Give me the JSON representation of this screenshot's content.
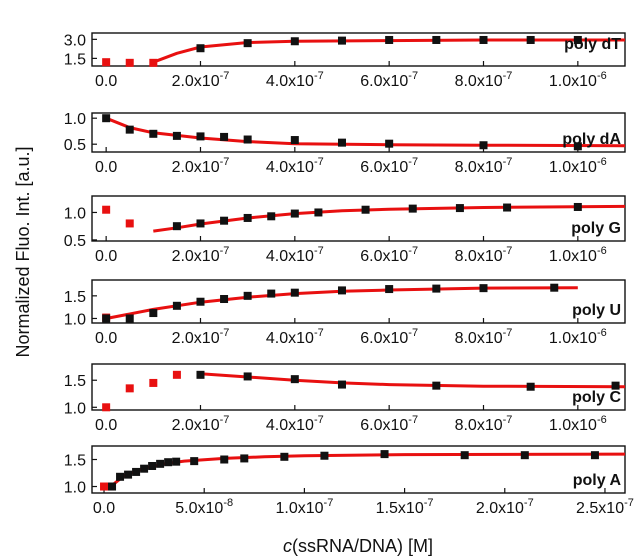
{
  "chart_data": {
    "type": "scatter",
    "ylabel": "Normalized Fluo. Int. [a.u.]",
    "xlabel": "c(ssRNA/DNA) [M]",
    "xlabel_italic": "c",
    "xlabel_rest": "(ssRNA/DNA) [M]",
    "colors": {
      "data": "#111111",
      "excluded": "#e81010",
      "fit": "#e81010",
      "axis": "#111111"
    },
    "panels": [
      {
        "label": "poly dT",
        "xlim": [
          -3e-08,
          1.1e-06
        ],
        "ylim": [
          0.9,
          3.5
        ],
        "yticks": [
          {
            "v": 3.0,
            "t": "3.0"
          },
          {
            "v": 1.5,
            "t": "1.5"
          }
        ],
        "xticks": [
          {
            "v": 0,
            "m": "0.0",
            "e": ""
          },
          {
            "v": 2e-07,
            "m": "2.0x10",
            "e": "-7"
          },
          {
            "v": 4e-07,
            "m": "4.0x10",
            "e": "-7"
          },
          {
            "v": 6e-07,
            "m": "6.0x10",
            "e": "-7"
          },
          {
            "v": 8e-07,
            "m": "8.0x10",
            "e": "-7"
          },
          {
            "v": 1e-06,
            "m": "1.0x10",
            "e": "-6"
          }
        ],
        "excluded": [
          [
            0,
            1.2
          ],
          [
            5e-08,
            1.15
          ],
          [
            1e-07,
            1.15
          ]
        ],
        "points": [
          [
            2e-07,
            2.3
          ],
          [
            3e-07,
            2.7
          ],
          [
            4e-07,
            2.85
          ],
          [
            5e-07,
            2.9
          ],
          [
            6e-07,
            2.95
          ],
          [
            7e-07,
            2.95
          ],
          [
            8e-07,
            2.95
          ],
          [
            9e-07,
            2.95
          ],
          [
            1e-06,
            2.95
          ]
        ],
        "fit": [
          [
            1e-07,
            1.2
          ],
          [
            1.5e-07,
            1.9
          ],
          [
            2e-07,
            2.4
          ],
          [
            3e-07,
            2.75
          ],
          [
            4e-07,
            2.85
          ],
          [
            6e-07,
            2.9
          ],
          [
            8e-07,
            2.95
          ],
          [
            1.1e-06,
            2.95
          ]
        ]
      },
      {
        "label": "poly dA",
        "xlim": [
          -3e-08,
          1.1e-06
        ],
        "ylim": [
          0.35,
          1.1
        ],
        "yticks": [
          {
            "v": 1.0,
            "t": "1.0"
          },
          {
            "v": 0.5,
            "t": "0.5"
          }
        ],
        "xticks": [
          {
            "v": 0,
            "m": "0.0",
            "e": ""
          },
          {
            "v": 2e-07,
            "m": "2.0x10",
            "e": "-7"
          },
          {
            "v": 4e-07,
            "m": "4.0x10",
            "e": "-7"
          },
          {
            "v": 6e-07,
            "m": "6.0x10",
            "e": "-7"
          },
          {
            "v": 8e-07,
            "m": "8.0x10",
            "e": "-7"
          },
          {
            "v": 1e-06,
            "m": "1.0x10",
            "e": "-6"
          }
        ],
        "excluded": [],
        "points": [
          [
            0,
            1.0
          ],
          [
            5e-08,
            0.78
          ],
          [
            1e-07,
            0.7
          ],
          [
            1.5e-07,
            0.66
          ],
          [
            2e-07,
            0.65
          ],
          [
            2.5e-07,
            0.64
          ],
          [
            3e-07,
            0.59
          ],
          [
            4e-07,
            0.58
          ],
          [
            5e-07,
            0.53
          ],
          [
            6e-07,
            0.51
          ],
          [
            8e-07,
            0.48
          ],
          [
            1e-06,
            0.46
          ]
        ],
        "fit": [
          [
            0,
            1.0
          ],
          [
            5e-08,
            0.82
          ],
          [
            1e-07,
            0.72
          ],
          [
            2e-07,
            0.62
          ],
          [
            3e-07,
            0.55
          ],
          [
            4e-07,
            0.51
          ],
          [
            6e-07,
            0.49
          ],
          [
            8e-07,
            0.48
          ],
          [
            1.1e-06,
            0.47
          ]
        ]
      },
      {
        "label": "poly G",
        "xlim": [
          -3e-08,
          1.1e-06
        ],
        "ylim": [
          0.48,
          1.3
        ],
        "yticks": [
          {
            "v": 1.0,
            "t": "1.0"
          },
          {
            "v": 0.5,
            "t": "0.5"
          }
        ],
        "xticks": [
          {
            "v": 0,
            "m": "0.0",
            "e": ""
          },
          {
            "v": 2e-07,
            "m": "2.0x10",
            "e": "-7"
          },
          {
            "v": 4e-07,
            "m": "4.0x10",
            "e": "-7"
          },
          {
            "v": 6e-07,
            "m": "6.0x10",
            "e": "-7"
          },
          {
            "v": 8e-07,
            "m": "8.0x10",
            "e": "-7"
          },
          {
            "v": 1e-06,
            "m": "1.0x10",
            "e": "-6"
          }
        ],
        "excluded": [
          [
            0,
            1.05
          ],
          [
            5e-08,
            0.8
          ]
        ],
        "points": [
          [
            1.5e-07,
            0.75
          ],
          [
            2e-07,
            0.8
          ],
          [
            2.5e-07,
            0.85
          ],
          [
            3e-07,
            0.9
          ],
          [
            3.5e-07,
            0.93
          ],
          [
            4e-07,
            0.98
          ],
          [
            4.5e-07,
            1.0
          ],
          [
            5.5e-07,
            1.05
          ],
          [
            6.5e-07,
            1.07
          ],
          [
            7.5e-07,
            1.08
          ],
          [
            8.5e-07,
            1.09
          ],
          [
            1e-06,
            1.1
          ]
        ],
        "fit": [
          [
            1e-07,
            0.66
          ],
          [
            1.5e-07,
            0.72
          ],
          [
            2e-07,
            0.79
          ],
          [
            3e-07,
            0.9
          ],
          [
            4e-07,
            0.98
          ],
          [
            5e-07,
            1.03
          ],
          [
            6e-07,
            1.06
          ],
          [
            8e-07,
            1.09
          ],
          [
            1.1e-06,
            1.11
          ]
        ]
      },
      {
        "label": "poly U",
        "xlim": [
          -3e-08,
          1.1e-06
        ],
        "ylim": [
          0.9,
          1.85
        ],
        "yticks": [
          {
            "v": 1.5,
            "t": "1.5"
          },
          {
            "v": 1.0,
            "t": "1.0"
          }
        ],
        "xticks": [
          {
            "v": 0,
            "m": "0.0",
            "e": ""
          },
          {
            "v": 2e-07,
            "m": "2.0x10",
            "e": "-7"
          },
          {
            "v": 4e-07,
            "m": "4.0x10",
            "e": "-7"
          },
          {
            "v": 6e-07,
            "m": "6.0x10",
            "e": "-7"
          },
          {
            "v": 8e-07,
            "m": "8.0x10",
            "e": "-7"
          },
          {
            "v": 1e-06,
            "m": "1.0x10",
            "e": "-6"
          }
        ],
        "excluded": [
          [
            0,
            1.02
          ]
        ],
        "points": [
          [
            0,
            1.0
          ],
          [
            5e-08,
            1.0
          ],
          [
            1e-07,
            1.12
          ],
          [
            1.5e-07,
            1.28
          ],
          [
            2e-07,
            1.37
          ],
          [
            2.5e-07,
            1.43
          ],
          [
            3e-07,
            1.5
          ],
          [
            3.5e-07,
            1.55
          ],
          [
            4e-07,
            1.57
          ],
          [
            5e-07,
            1.62
          ],
          [
            6e-07,
            1.65
          ],
          [
            7e-07,
            1.66
          ],
          [
            8e-07,
            1.67
          ],
          [
            9.5e-07,
            1.68
          ]
        ],
        "fit": [
          [
            0,
            1.0
          ],
          [
            1e-07,
            1.2
          ],
          [
            2e-07,
            1.36
          ],
          [
            3e-07,
            1.47
          ],
          [
            4e-07,
            1.55
          ],
          [
            5e-07,
            1.6
          ],
          [
            6e-07,
            1.63
          ],
          [
            8e-07,
            1.67
          ],
          [
            1e-06,
            1.68
          ]
        ]
      },
      {
        "label": "poly C",
        "xlim": [
          -3e-08,
          1.1e-06
        ],
        "ylim": [
          0.95,
          1.8
        ],
        "yticks": [
          {
            "v": 1.5,
            "t": "1.5"
          },
          {
            "v": 1.0,
            "t": "1.0"
          }
        ],
        "xticks": [
          {
            "v": 0,
            "m": "0.0",
            "e": ""
          },
          {
            "v": 2e-07,
            "m": "2.0x10",
            "e": "-7"
          },
          {
            "v": 4e-07,
            "m": "4.0x10",
            "e": "-7"
          },
          {
            "v": 6e-07,
            "m": "6.0x10",
            "e": "-7"
          },
          {
            "v": 8e-07,
            "m": "8.0x10",
            "e": "-7"
          },
          {
            "v": 1e-06,
            "m": "1.0x10",
            "e": "-6"
          }
        ],
        "excluded": [
          [
            0,
            1.0
          ],
          [
            5e-08,
            1.35
          ],
          [
            1e-07,
            1.45
          ],
          [
            1.5e-07,
            1.6
          ]
        ],
        "points": [
          [
            2e-07,
            1.6
          ],
          [
            3e-07,
            1.57
          ],
          [
            4e-07,
            1.52
          ],
          [
            5e-07,
            1.42
          ],
          [
            7e-07,
            1.4
          ],
          [
            9e-07,
            1.38
          ],
          [
            1.08e-06,
            1.4
          ]
        ],
        "fit": [
          [
            2e-07,
            1.62
          ],
          [
            3e-07,
            1.56
          ],
          [
            4e-07,
            1.5
          ],
          [
            5e-07,
            1.45
          ],
          [
            6e-07,
            1.42
          ],
          [
            8e-07,
            1.39
          ],
          [
            1.1e-06,
            1.38
          ]
        ]
      },
      {
        "label": "poly A",
        "xlim": [
          -6e-09,
          2.6e-07
        ],
        "ylim": [
          0.88,
          1.75
        ],
        "yticks": [
          {
            "v": 1.5,
            "t": "1.5"
          },
          {
            "v": 1.0,
            "t": "1.0"
          }
        ],
        "xticks": [
          {
            "v": 0,
            "m": "0.0",
            "e": ""
          },
          {
            "v": 5e-08,
            "m": "5.0x10",
            "e": "-8"
          },
          {
            "v": 1e-07,
            "m": "1.0x10",
            "e": "-7"
          },
          {
            "v": 1.5e-07,
            "m": "1.5x10",
            "e": "-7"
          },
          {
            "v": 2e-07,
            "m": "2.0x10",
            "e": "-7"
          },
          {
            "v": 2.5e-07,
            "m": "2.5x10",
            "e": "-7"
          }
        ],
        "excluded": [
          [
            0,
            1.0
          ],
          [
            3e-09,
            1.0
          ]
        ],
        "points": [
          [
            4e-09,
            1.0
          ],
          [
            8e-09,
            1.18
          ],
          [
            1.2e-08,
            1.22
          ],
          [
            1.6e-08,
            1.27
          ],
          [
            2e-08,
            1.33
          ],
          [
            2.4e-08,
            1.38
          ],
          [
            2.8e-08,
            1.42
          ],
          [
            3.2e-08,
            1.45
          ],
          [
            3.6e-08,
            1.46
          ],
          [
            4.5e-08,
            1.47
          ],
          [
            6e-08,
            1.5
          ],
          [
            7e-08,
            1.52
          ],
          [
            9e-08,
            1.55
          ],
          [
            1.1e-07,
            1.57
          ],
          [
            1.4e-07,
            1.6
          ],
          [
            1.8e-07,
            1.58
          ],
          [
            2.1e-07,
            1.58
          ],
          [
            2.45e-07,
            1.58
          ]
        ],
        "fit": [
          [
            0,
            1.0
          ],
          [
            5e-09,
            1.05
          ],
          [
            1e-08,
            1.2
          ],
          [
            2e-08,
            1.34
          ],
          [
            3e-08,
            1.42
          ],
          [
            4e-08,
            1.47
          ],
          [
            6e-08,
            1.52
          ],
          [
            8e-08,
            1.55
          ],
          [
            1e-07,
            1.57
          ],
          [
            1.5e-07,
            1.59
          ],
          [
            2.6e-07,
            1.6
          ]
        ]
      }
    ]
  }
}
